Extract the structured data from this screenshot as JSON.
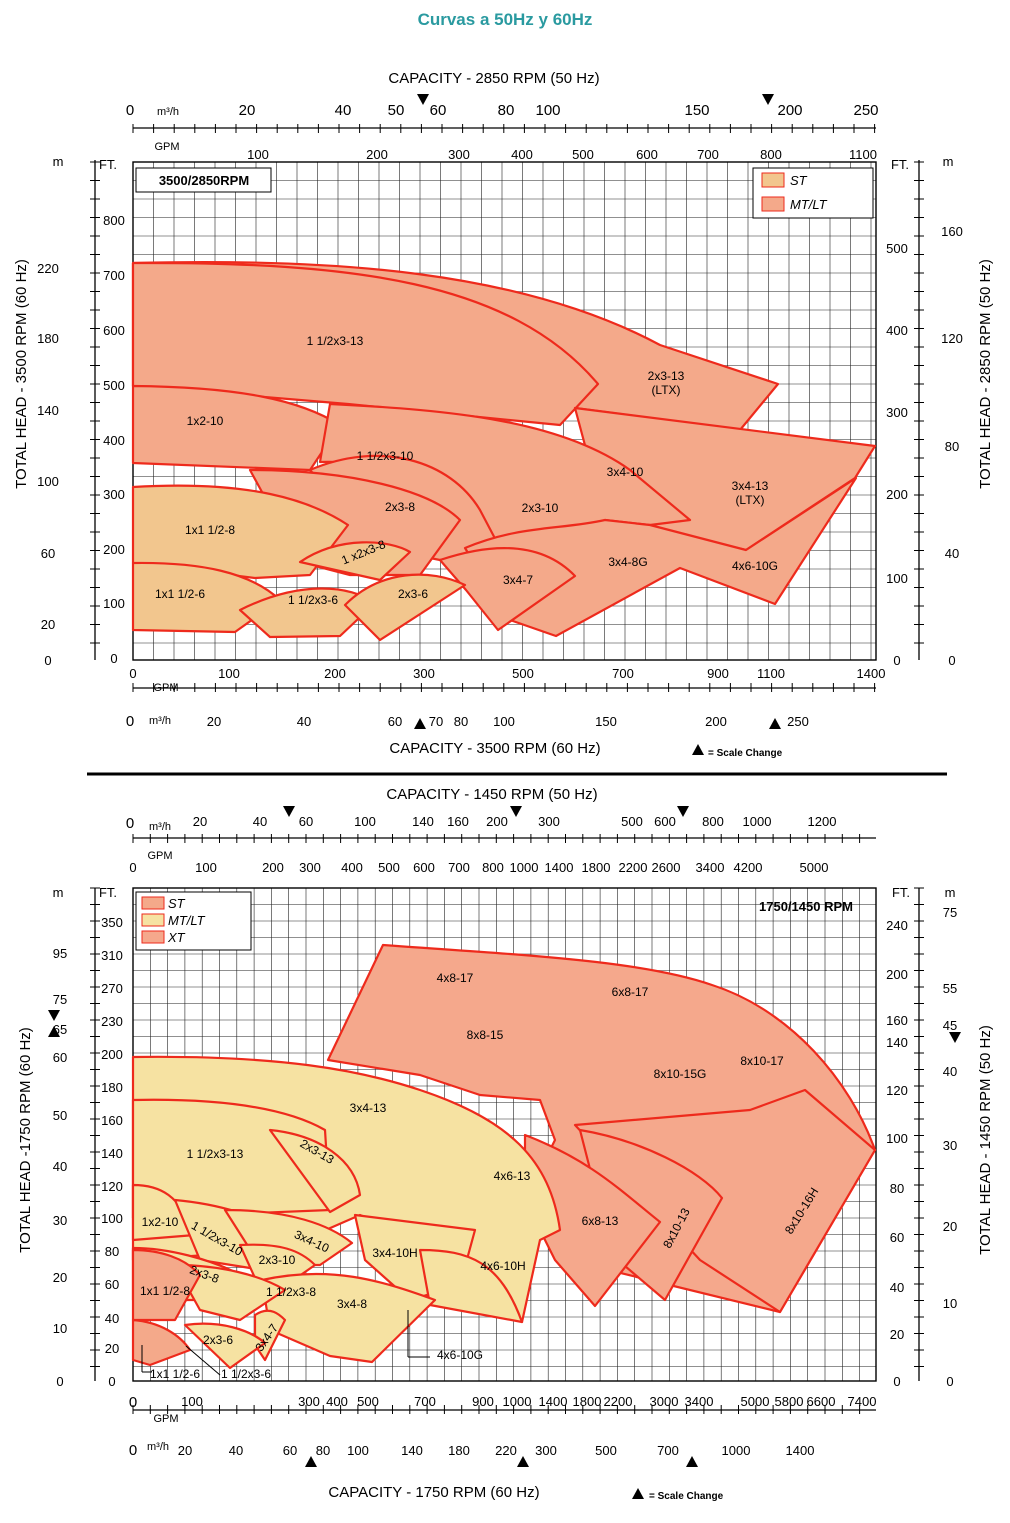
{
  "page_title": "Curvas a 50Hz y 60Hz",
  "colors": {
    "st_fill": "#f2c68e",
    "mt_fill": "#f4a98a",
    "xt_fill": "#f5a88c",
    "upper_yellow_fill": "#f6e2a2",
    "outline": "#ee2a1c",
    "grid": "#222222"
  },
  "legend_markers": {
    "scale_change": "▲",
    "note": "= Scale Change",
    "note_lower": "= Scale Change"
  },
  "chart_data": [
    {
      "type": "area",
      "speed_label": "3500/2850RPM",
      "legend": [
        "ST",
        "MT/LT"
      ],
      "axes": {
        "top_title": "CAPACITY - 2850 RPM (50 Hz)",
        "top_m3h_unit": "m³/h",
        "top_m3h_ticks": [
          "0",
          "20",
          "40",
          "50",
          "60",
          "80",
          "100",
          "150",
          "200",
          "250"
        ],
        "top_gpm_unit": "GPM",
        "top_gpm_ticks": [
          "100",
          "200",
          "300",
          "400",
          "500",
          "600",
          "700",
          "800",
          "1100"
        ],
        "bottom_title": "CAPACITY - 3500 RPM (60 Hz)",
        "bottom_gpm_unit": "GPM",
        "bottom_gpm_ticks": [
          "0",
          "100",
          "200",
          "300",
          "500",
          "700",
          "900",
          "1100",
          "1400"
        ],
        "bottom_m3h_unit": "m³/h",
        "bottom_m3h_ticks": [
          "0",
          "20",
          "40",
          "60",
          "70",
          "80",
          "100",
          "150",
          "200",
          "250"
        ],
        "left_title": "TOTAL HEAD - 3500 RPM (60 Hz)",
        "left_m_unit": "m",
        "left_m_ticks": [
          "0",
          "20",
          "60",
          "100",
          "140",
          "180",
          "220"
        ],
        "left_ft_unit": "FT.",
        "left_ft_ticks": [
          "0",
          "100",
          "200",
          "300",
          "400",
          "500",
          "600",
          "700",
          "800"
        ],
        "right_title": "TOTAL HEAD - 2850 RPM (50 Hz)",
        "right_ft_unit": "FT.",
        "right_ft_ticks": [
          "0",
          "100",
          "200",
          "300",
          "400",
          "500"
        ],
        "right_m_unit": "m",
        "right_m_ticks": [
          "0",
          "40",
          "80",
          "120",
          "160"
        ]
      },
      "regions": [
        {
          "label": "1 1/2x3-13",
          "family": "MT/LT"
        },
        {
          "label": "2x3-13 (LTX)",
          "family": "MT/LT"
        },
        {
          "label": "1x2-10",
          "family": "MT/LT"
        },
        {
          "label": "1 1/2x3-10",
          "family": "MT/LT"
        },
        {
          "label": "3x4-10",
          "family": "MT/LT"
        },
        {
          "label": "3x4-13 (LTX)",
          "family": "MT/LT"
        },
        {
          "label": "2x3-10",
          "family": "MT/LT"
        },
        {
          "label": "3x4-7",
          "family": "MT/LT"
        },
        {
          "label": "3x4-8G",
          "family": "MT/LT"
        },
        {
          "label": "4x6-10G",
          "family": "MT/LT"
        },
        {
          "label": "1x1 1/2-8",
          "family": "ST"
        },
        {
          "label": "2x3-8",
          "family": "ST"
        },
        {
          "label": "1 x2x3-8",
          "family": "ST"
        },
        {
          "label": "1x1 1/2-6",
          "family": "ST"
        },
        {
          "label": "1 1/2x3-6",
          "family": "ST"
        },
        {
          "label": "2x3-6",
          "family": "ST"
        }
      ]
    },
    {
      "type": "area",
      "speed_label": "1750/1450 RPM",
      "legend": [
        "ST",
        "MT/LT",
        "XT"
      ],
      "axes": {
        "top_title": "CAPACITY - 1450 RPM (50 Hz)",
        "top_m3h_unit": "m³/h",
        "top_m3h_ticks": [
          "0",
          "20",
          "40",
          "60",
          "100",
          "140",
          "160",
          "200",
          "300",
          "500",
          "600",
          "800",
          "1000",
          "1200"
        ],
        "top_gpm_unit": "GPM",
        "top_gpm_ticks": [
          "0",
          "100",
          "200",
          "300",
          "400",
          "500",
          "600",
          "700",
          "800",
          "1000",
          "1400",
          "1800",
          "2200",
          "2600",
          "3400",
          "4200",
          "5000"
        ],
        "bottom_title": "CAPACITY - 1750 RPM (60 Hz)",
        "bottom_gpm_unit": "GPM",
        "bottom_gpm_ticks": [
          "0",
          "100",
          "300",
          "400",
          "500",
          "700",
          "900",
          "1000",
          "1400",
          "1800",
          "2200",
          "3000",
          "3400",
          "5000",
          "5800",
          "6600",
          "7400"
        ],
        "bottom_m3h_unit": "m³/h",
        "bottom_m3h_ticks": [
          "0",
          "20",
          "40",
          "60",
          "80",
          "100",
          "140",
          "180",
          "220",
          "300",
          "500",
          "700",
          "1000",
          "1400"
        ],
        "left_title": "TOTAL HEAD -1750 RPM (60 Hz)",
        "left_m_unit": "m",
        "left_m_ticks": [
          "0",
          "10",
          "20",
          "30",
          "40",
          "50",
          "60",
          "65",
          "75",
          "95"
        ],
        "left_ft_unit": "FT.",
        "left_ft_ticks": [
          "0",
          "20",
          "40",
          "60",
          "80",
          "100",
          "120",
          "140",
          "160",
          "180",
          "200",
          "230",
          "270",
          "310",
          "350"
        ],
        "right_title": "TOTAL HEAD - 1450 RPM (50 Hz)",
        "right_ft_unit": "FT.",
        "right_ft_ticks": [
          "0",
          "20",
          "40",
          "60",
          "80",
          "100",
          "120",
          "140",
          "160",
          "200",
          "240"
        ],
        "right_m_unit": "m",
        "right_m_ticks": [
          "0",
          "10",
          "20",
          "30",
          "40",
          "45",
          "55",
          "75"
        ]
      },
      "regions": [
        {
          "label": "4x8-17",
          "family": "XT"
        },
        {
          "label": "6x8-17",
          "family": "XT"
        },
        {
          "label": "8x8-15",
          "family": "XT"
        },
        {
          "label": "8x10-15G",
          "family": "XT"
        },
        {
          "label": "8x10-17",
          "family": "XT"
        },
        {
          "label": "6x8-13",
          "family": "XT"
        },
        {
          "label": "8x10-13",
          "family": "XT"
        },
        {
          "label": "8x10-16H",
          "family": "XT"
        },
        {
          "label": "3x4-13",
          "family": "MT/LT"
        },
        {
          "label": "1 1/2x3-13",
          "family": "MT/LT"
        },
        {
          "label": "2x3-13",
          "family": "MT/LT"
        },
        {
          "label": "4x6-13",
          "family": "MT/LT"
        },
        {
          "label": "1x2-10",
          "family": "MT/LT"
        },
        {
          "label": "1 1/2x3-10",
          "family": "MT/LT"
        },
        {
          "label": "3x4-10",
          "family": "MT/LT"
        },
        {
          "label": "2x3-10",
          "family": "MT/LT"
        },
        {
          "label": "3x4-10H",
          "family": "MT/LT"
        },
        {
          "label": "4x6-10H",
          "family": "MT/LT"
        },
        {
          "label": "2x3-8",
          "family": "ST"
        },
        {
          "label": "1x1 1/2-8",
          "family": "ST"
        },
        {
          "label": "1 1/2x3-8",
          "family": "ST"
        },
        {
          "label": "3x4-8",
          "family": "MT/LT"
        },
        {
          "label": "2x3-6",
          "family": "ST"
        },
        {
          "label": "3x4-7",
          "family": "MT/LT"
        },
        {
          "label": "1x1 1/2-6",
          "family": "ST"
        },
        {
          "label": "1 1/2x3-6",
          "family": "ST"
        },
        {
          "label": "4x6-10G",
          "family": "MT/LT"
        }
      ]
    }
  ]
}
